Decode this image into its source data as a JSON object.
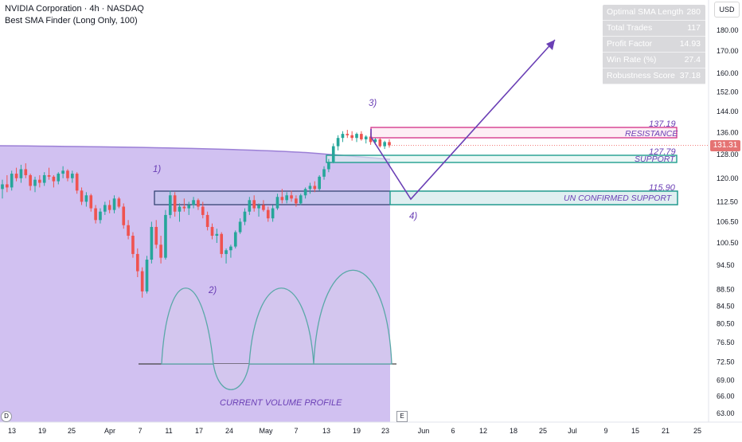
{
  "header": {
    "symbol_line": "NVIDIA Corporation · 4h · NASDAQ",
    "indicator_line": "Best SMA Finder (Long Only, 100)"
  },
  "stats_table": [
    {
      "label": "Optimal SMA Length",
      "value": "280"
    },
    {
      "label": "Total Trades",
      "value": "117"
    },
    {
      "label": "Profit Factor",
      "value": "14.93"
    },
    {
      "label": "Win Rate (%)",
      "value": "27.4"
    },
    {
      "label": "Robustness Score",
      "value": "37.18"
    }
  ],
  "currency_button": "USD",
  "badges": {
    "d": "D",
    "e": "E"
  },
  "colors": {
    "up": "#26a69a",
    "down": "#ef5350",
    "sma_fill": "#c9b6ef",
    "sma_line": "#9b7fd6",
    "annotation": "#6a3fb5",
    "resistance": "#d63c8e",
    "support": "#1f9e8e",
    "unconfirmed": "#1f9e8e",
    "volume_curve": "#5aa8a8",
    "volume_fill": "#d3c6ee"
  },
  "chart_data": {
    "type": "candlestick",
    "y_axis_ticks": [
      "180.00",
      "170.00",
      "160.00",
      "152.00",
      "144.00",
      "136.00",
      "128.00",
      "120.00",
      "112.50",
      "106.50",
      "100.50",
      "94.50",
      "88.50",
      "84.50",
      "80.50",
      "76.50",
      "72.50",
      "69.00",
      "66.00",
      "63.00"
    ],
    "y_log_scale": true,
    "x_axis_ticks": [
      "13",
      "19",
      "25",
      "Apr",
      "7",
      "11",
      "17",
      "24",
      "May",
      "7",
      "13",
      "19",
      "23",
      "Jun",
      "6",
      "12",
      "18",
      "25",
      "Jul",
      "9",
      "15",
      "21",
      "25"
    ],
    "last_price": "131.31",
    "levels": [
      {
        "name": "RESISTANCE",
        "value": "137.19"
      },
      {
        "name": "SUPPORT",
        "value": "127.79"
      },
      {
        "name": "UN CONFIRMED SUPPORT",
        "value": "115.90"
      }
    ],
    "annotations": [
      "1)",
      "2)",
      "3)",
      "4)",
      "CURRENT VOLUME PROFILE"
    ],
    "candles": [
      {
        "o": 116.5,
        "h": 119.5,
        "l": 113.5,
        "c": 118.0
      },
      {
        "o": 118.0,
        "h": 121.0,
        "l": 115.5,
        "c": 117.0
      },
      {
        "o": 117.0,
        "h": 122.5,
        "l": 116.0,
        "c": 121.5
      },
      {
        "o": 121.5,
        "h": 123.5,
        "l": 119.0,
        "c": 120.0
      },
      {
        "o": 120.0,
        "h": 124.5,
        "l": 118.5,
        "c": 123.0
      },
      {
        "o": 123.0,
        "h": 125.0,
        "l": 120.0,
        "c": 121.0
      },
      {
        "o": 121.0,
        "h": 121.5,
        "l": 116.0,
        "c": 117.5
      },
      {
        "o": 117.5,
        "h": 120.5,
        "l": 115.5,
        "c": 119.5
      },
      {
        "o": 119.5,
        "h": 121.0,
        "l": 117.0,
        "c": 118.5
      },
      {
        "o": 118.5,
        "h": 122.0,
        "l": 117.5,
        "c": 121.0
      },
      {
        "o": 121.0,
        "h": 123.5,
        "l": 119.5,
        "c": 120.5
      },
      {
        "o": 120.5,
        "h": 121.0,
        "l": 117.0,
        "c": 119.0
      },
      {
        "o": 119.0,
        "h": 122.0,
        "l": 118.0,
        "c": 121.5
      },
      {
        "o": 121.5,
        "h": 124.0,
        "l": 120.0,
        "c": 122.5
      },
      {
        "o": 122.5,
        "h": 123.0,
        "l": 119.0,
        "c": 120.0
      },
      {
        "o": 120.0,
        "h": 122.5,
        "l": 118.5,
        "c": 121.5
      },
      {
        "o": 121.5,
        "h": 122.0,
        "l": 115.0,
        "c": 116.0
      },
      {
        "o": 116.0,
        "h": 117.0,
        "l": 111.5,
        "c": 112.5
      },
      {
        "o": 112.5,
        "h": 115.5,
        "l": 111.0,
        "c": 114.5
      },
      {
        "o": 114.5,
        "h": 115.0,
        "l": 109.5,
        "c": 110.5
      },
      {
        "o": 110.5,
        "h": 111.5,
        "l": 106.0,
        "c": 107.0
      },
      {
        "o": 107.0,
        "h": 110.5,
        "l": 106.0,
        "c": 109.5
      },
      {
        "o": 109.5,
        "h": 112.5,
        "l": 108.5,
        "c": 111.5
      },
      {
        "o": 111.5,
        "h": 113.0,
        "l": 109.0,
        "c": 110.0
      },
      {
        "o": 110.0,
        "h": 114.5,
        "l": 109.0,
        "c": 113.5
      },
      {
        "o": 113.5,
        "h": 114.0,
        "l": 110.5,
        "c": 111.0
      },
      {
        "o": 111.0,
        "h": 112.0,
        "l": 104.5,
        "c": 105.5
      },
      {
        "o": 105.5,
        "h": 107.0,
        "l": 101.5,
        "c": 102.5
      },
      {
        "o": 102.5,
        "h": 103.5,
        "l": 96.5,
        "c": 97.5
      },
      {
        "o": 97.5,
        "h": 99.0,
        "l": 91.5,
        "c": 93.0
      },
      {
        "o": 93.0,
        "h": 94.0,
        "l": 86.5,
        "c": 88.0
      },
      {
        "o": 88.0,
        "h": 97.0,
        "l": 87.5,
        "c": 96.0
      },
      {
        "o": 96.0,
        "h": 106.5,
        "l": 95.0,
        "c": 105.0
      },
      {
        "o": 105.0,
        "h": 107.0,
        "l": 99.0,
        "c": 100.0
      },
      {
        "o": 100.0,
        "h": 102.5,
        "l": 95.0,
        "c": 96.5
      },
      {
        "o": 96.5,
        "h": 110.0,
        "l": 96.0,
        "c": 108.5
      },
      {
        "o": 108.5,
        "h": 116.0,
        "l": 107.5,
        "c": 114.5
      },
      {
        "o": 114.5,
        "h": 115.5,
        "l": 108.0,
        "c": 109.5
      },
      {
        "o": 109.5,
        "h": 112.0,
        "l": 106.5,
        "c": 111.0
      },
      {
        "o": 111.0,
        "h": 113.5,
        "l": 109.5,
        "c": 110.5
      },
      {
        "o": 110.5,
        "h": 112.5,
        "l": 108.5,
        "c": 111.5
      },
      {
        "o": 111.5,
        "h": 114.0,
        "l": 110.5,
        "c": 113.0
      },
      {
        "o": 113.0,
        "h": 113.5,
        "l": 110.0,
        "c": 111.0
      },
      {
        "o": 111.0,
        "h": 112.5,
        "l": 107.5,
        "c": 108.5
      },
      {
        "o": 108.5,
        "h": 109.5,
        "l": 104.0,
        "c": 105.0
      },
      {
        "o": 105.0,
        "h": 106.0,
        "l": 101.5,
        "c": 102.5
      },
      {
        "o": 102.5,
        "h": 104.5,
        "l": 100.5,
        "c": 103.0
      },
      {
        "o": 103.0,
        "h": 103.5,
        "l": 96.5,
        "c": 97.5
      },
      {
        "o": 97.5,
        "h": 99.0,
        "l": 95.0,
        "c": 98.5
      },
      {
        "o": 98.5,
        "h": 100.0,
        "l": 96.5,
        "c": 99.5
      },
      {
        "o": 99.5,
        "h": 104.0,
        "l": 99.0,
        "c": 103.5
      },
      {
        "o": 103.5,
        "h": 107.5,
        "l": 103.0,
        "c": 106.5
      },
      {
        "o": 106.5,
        "h": 110.5,
        "l": 105.5,
        "c": 109.5
      },
      {
        "o": 109.5,
        "h": 114.0,
        "l": 108.5,
        "c": 113.0
      },
      {
        "o": 113.0,
        "h": 114.5,
        "l": 109.5,
        "c": 110.5
      },
      {
        "o": 110.5,
        "h": 112.0,
        "l": 108.0,
        "c": 111.5
      },
      {
        "o": 111.5,
        "h": 113.0,
        "l": 109.5,
        "c": 110.0
      },
      {
        "o": 110.0,
        "h": 111.0,
        "l": 106.5,
        "c": 107.5
      },
      {
        "o": 107.5,
        "h": 111.5,
        "l": 106.5,
        "c": 110.5
      },
      {
        "o": 110.5,
        "h": 115.0,
        "l": 110.0,
        "c": 114.0
      },
      {
        "o": 114.0,
        "h": 116.5,
        "l": 112.0,
        "c": 113.0
      },
      {
        "o": 113.0,
        "h": 115.5,
        "l": 112.0,
        "c": 114.5
      },
      {
        "o": 114.5,
        "h": 116.0,
        "l": 112.5,
        "c": 113.5
      },
      {
        "o": 113.5,
        "h": 114.5,
        "l": 111.0,
        "c": 112.0
      },
      {
        "o": 112.0,
        "h": 115.0,
        "l": 111.5,
        "c": 114.5
      },
      {
        "o": 114.5,
        "h": 117.0,
        "l": 113.5,
        "c": 116.5
      },
      {
        "o": 116.5,
        "h": 118.5,
        "l": 115.0,
        "c": 117.5
      },
      {
        "o": 117.5,
        "h": 119.0,
        "l": 115.5,
        "c": 116.5
      },
      {
        "o": 116.5,
        "h": 121.0,
        "l": 116.0,
        "c": 120.5
      },
      {
        "o": 120.5,
        "h": 124.0,
        "l": 119.5,
        "c": 123.0
      },
      {
        "o": 123.0,
        "h": 126.5,
        "l": 122.0,
        "c": 125.5
      },
      {
        "o": 125.5,
        "h": 132.0,
        "l": 125.0,
        "c": 131.0
      },
      {
        "o": 131.0,
        "h": 135.0,
        "l": 129.5,
        "c": 134.0
      },
      {
        "o": 134.0,
        "h": 136.5,
        "l": 132.5,
        "c": 135.5
      },
      {
        "o": 135.5,
        "h": 137.0,
        "l": 134.0,
        "c": 135.0
      },
      {
        "o": 135.0,
        "h": 136.5,
        "l": 133.0,
        "c": 134.0
      },
      {
        "o": 134.0,
        "h": 136.0,
        "l": 132.5,
        "c": 135.5
      },
      {
        "o": 135.5,
        "h": 136.5,
        "l": 133.0,
        "c": 133.5
      },
      {
        "o": 133.5,
        "h": 135.0,
        "l": 132.0,
        "c": 134.5
      },
      {
        "o": 134.5,
        "h": 136.0,
        "l": 131.5,
        "c": 132.5
      },
      {
        "o": 132.5,
        "h": 134.0,
        "l": 131.5,
        "c": 133.5
      },
      {
        "o": 133.5,
        "h": 134.0,
        "l": 130.5,
        "c": 131.0
      },
      {
        "o": 131.0,
        "h": 133.0,
        "l": 130.0,
        "c": 132.5
      },
      {
        "o": 132.5,
        "h": 133.5,
        "l": 130.5,
        "c": 131.31
      }
    ]
  }
}
